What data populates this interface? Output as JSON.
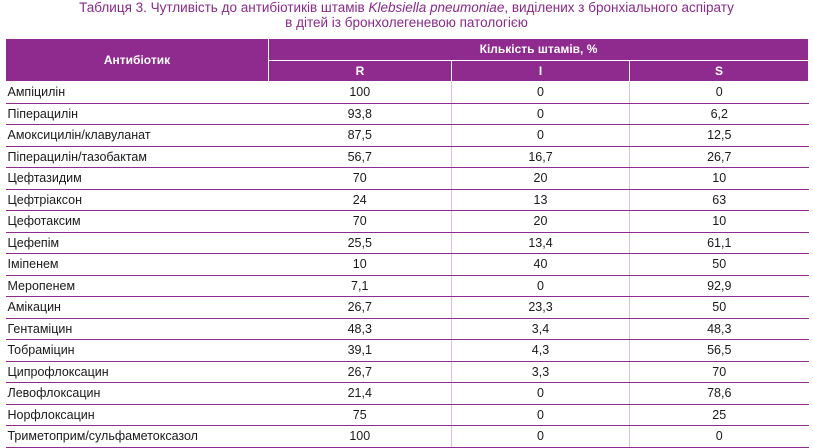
{
  "caption": {
    "prefix": "Таблиця 3.  Чутливість до антибіотиків штамів ",
    "organism": "Klebsiella pneumoniae",
    "suffix": ", виділених з бронхіального аспірату",
    "line2": "в дітей із бронхолегеневою патологією"
  },
  "table": {
    "col_antibiotic": "Антибіотик",
    "col_group": "Кількість штамів, %",
    "col_r": "R",
    "col_i": "I",
    "col_s": "S",
    "rows": [
      {
        "name": "Ампіцилін",
        "r": "100",
        "i": "0",
        "s": "0"
      },
      {
        "name": "Піперацилін",
        "r": "93,8",
        "i": "0",
        "s": "6,2"
      },
      {
        "name": "Амоксицилін/клавуланат",
        "r": "87,5",
        "i": "0",
        "s": "12,5"
      },
      {
        "name": "Піперацилін/тазобактам",
        "r": "56,7",
        "i": "16,7",
        "s": "26,7"
      },
      {
        "name": "Цефтазидим",
        "r": "70",
        "i": "20",
        "s": "10"
      },
      {
        "name": "Цефтріаксон",
        "r": "24",
        "i": "13",
        "s": "63"
      },
      {
        "name": "Цефотаксим",
        "r": "70",
        "i": "20",
        "s": "10"
      },
      {
        "name": "Цефепім",
        "r": "25,5",
        "i": "13,4",
        "s": "61,1"
      },
      {
        "name": "Іміпенем",
        "r": "10",
        "i": "40",
        "s": "50"
      },
      {
        "name": "Меропенем",
        "r": "7,1",
        "i": "0",
        "s": "92,9"
      },
      {
        "name": "Амікацин",
        "r": "26,7",
        "i": "23,3",
        "s": "50"
      },
      {
        "name": "Гентаміцин",
        "r": "48,3",
        "i": "3,4",
        "s": "48,3"
      },
      {
        "name": "Тобраміцин",
        "r": "39,1",
        "i": "4,3",
        "s": "56,5"
      },
      {
        "name": "Ципрофлоксацин",
        "r": "26,7",
        "i": "3,3",
        "s": "70"
      },
      {
        "name": "Левофлоксацин",
        "r": "21,4",
        "i": "0",
        "s": "78,6"
      },
      {
        "name": "Норфлоксацин",
        "r": "75",
        "i": "0",
        "s": "25"
      },
      {
        "name": "Триметоприм/сульфаметоксазол",
        "r": "100",
        "i": "0",
        "s": "0"
      }
    ]
  },
  "colors": {
    "accent": "#8f2b8f",
    "caption_text": "#8a2a8a"
  }
}
